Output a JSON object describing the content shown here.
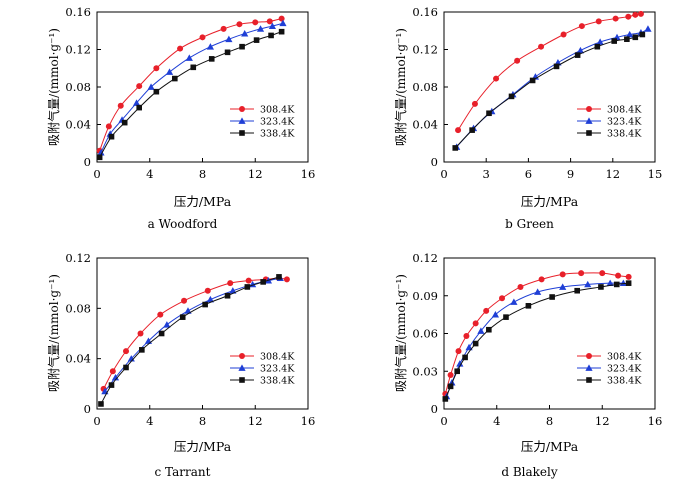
{
  "figure": {
    "background": "#ffffff"
  },
  "series_styles": [
    {
      "name": "308.4K",
      "color": "#e8202a",
      "marker": "circle"
    },
    {
      "name": "323.4K",
      "color": "#1f3fd6",
      "marker": "triangle"
    },
    {
      "name": "338.4K",
      "color": "#111111",
      "marker": "square"
    }
  ],
  "chart_data": [
    {
      "type": "scatter",
      "title": "a  Woodford",
      "xlabel": "压力/MPa",
      "ylabel": "吸附气量/(mmol·g⁻¹)",
      "xlim": [
        0,
        16
      ],
      "ylim": [
        0,
        0.16
      ],
      "xticks": [
        "0",
        "4",
        "8",
        "12",
        "16"
      ],
      "yticks": [
        "0",
        "0.04",
        "0.08",
        "0.12",
        "0.16"
      ],
      "legend": [
        "308.4K",
        "323.4K",
        "338.4K"
      ],
      "legend_position": "lower-right",
      "series": [
        {
          "name": "308.4K",
          "x": [
            0.2,
            0.9,
            1.8,
            3.2,
            4.5,
            6.3,
            8.0,
            9.6,
            10.8,
            12.0,
            13.1,
            14.0
          ],
          "y": [
            0.012,
            0.038,
            0.06,
            0.081,
            0.1,
            0.121,
            0.133,
            0.142,
            0.147,
            0.149,
            0.15,
            0.153
          ]
        },
        {
          "name": "323.4K",
          "x": [
            0.3,
            1.0,
            1.9,
            3.0,
            4.1,
            5.5,
            7.0,
            8.6,
            10.0,
            11.2,
            12.4,
            13.3,
            14.1
          ],
          "y": [
            0.01,
            0.03,
            0.045,
            0.063,
            0.08,
            0.096,
            0.111,
            0.123,
            0.131,
            0.137,
            0.142,
            0.145,
            0.148
          ]
        },
        {
          "name": "338.4K",
          "x": [
            0.2,
            1.1,
            2.1,
            3.2,
            4.5,
            5.9,
            7.3,
            8.7,
            9.9,
            11.0,
            12.1,
            13.2,
            14.0
          ],
          "y": [
            0.005,
            0.027,
            0.042,
            0.058,
            0.075,
            0.089,
            0.101,
            0.11,
            0.117,
            0.123,
            0.13,
            0.135,
            0.139
          ]
        }
      ]
    },
    {
      "type": "scatter",
      "title": "b  Green",
      "xlabel": "压力/MPa",
      "ylabel": "吸附气量/(mmol·g⁻¹)",
      "xlim": [
        0,
        15
      ],
      "ylim": [
        0,
        0.16
      ],
      "xticks": [
        "0",
        "3",
        "6",
        "9",
        "12",
        "15"
      ],
      "yticks": [
        "0",
        "0.04",
        "0.08",
        "0.12",
        "0.16"
      ],
      "legend": [
        "308.4K",
        "323.4K",
        "338.4K"
      ],
      "legend_position": "lower-right",
      "series": [
        {
          "name": "308.4K",
          "x": [
            1.0,
            2.2,
            3.7,
            5.2,
            6.9,
            8.5,
            9.8,
            11.0,
            12.2,
            13.1,
            13.6,
            14.0
          ],
          "y": [
            0.034,
            0.062,
            0.089,
            0.108,
            0.123,
            0.136,
            0.145,
            0.15,
            0.153,
            0.155,
            0.157,
            0.158
          ]
        },
        {
          "name": "323.4K",
          "x": [
            0.9,
            2.1,
            3.4,
            4.9,
            6.5,
            8.1,
            9.7,
            11.1,
            12.3,
            13.2,
            14.0,
            14.5
          ],
          "y": [
            0.016,
            0.036,
            0.054,
            0.072,
            0.091,
            0.106,
            0.119,
            0.128,
            0.133,
            0.136,
            0.138,
            0.142
          ]
        },
        {
          "name": "338.4K",
          "x": [
            0.8,
            2.0,
            3.2,
            4.8,
            6.3,
            8.0,
            9.5,
            10.9,
            12.1,
            13.0,
            13.6,
            14.1
          ],
          "y": [
            0.015,
            0.034,
            0.052,
            0.07,
            0.087,
            0.102,
            0.114,
            0.123,
            0.129,
            0.131,
            0.133,
            0.136
          ]
        }
      ]
    },
    {
      "type": "scatter",
      "title": "c  Tarrant",
      "xlabel": "压力/MPa",
      "ylabel": "吸附气量/(mmol·g⁻¹)",
      "xlim": [
        0,
        16
      ],
      "ylim": [
        0,
        0.12
      ],
      "xticks": [
        "0",
        "4",
        "8",
        "12",
        "16"
      ],
      "yticks": [
        "0",
        "0.04",
        "0.08",
        "0.12"
      ],
      "legend": [
        "308.4K",
        "323.4K",
        "338.4K"
      ],
      "legend_position": "lower-right",
      "series": [
        {
          "name": "308.4K",
          "x": [
            0.5,
            1.2,
            2.2,
            3.3,
            4.8,
            6.6,
            8.4,
            10.1,
            11.5,
            12.8,
            13.8,
            14.4
          ],
          "y": [
            0.016,
            0.03,
            0.046,
            0.06,
            0.075,
            0.086,
            0.094,
            0.1,
            0.102,
            0.103,
            0.104,
            0.103
          ]
        },
        {
          "name": "323.4K",
          "x": [
            0.6,
            1.4,
            2.6,
            3.9,
            5.3,
            6.9,
            8.6,
            10.3,
            11.8,
            13.0,
            13.9
          ],
          "y": [
            0.014,
            0.025,
            0.04,
            0.054,
            0.067,
            0.078,
            0.087,
            0.094,
            0.099,
            0.102,
            0.104
          ]
        },
        {
          "name": "338.4K",
          "x": [
            0.3,
            1.1,
            2.2,
            3.4,
            4.9,
            6.5,
            8.2,
            9.9,
            11.4,
            12.6,
            13.8
          ],
          "y": [
            0.004,
            0.019,
            0.033,
            0.047,
            0.06,
            0.073,
            0.083,
            0.09,
            0.097,
            0.101,
            0.105
          ]
        }
      ]
    },
    {
      "type": "scatter",
      "title": "d  Blakely",
      "xlabel": "压力/MPa",
      "ylabel": "吸附气量/(mmol·g⁻¹)",
      "xlim": [
        0,
        16
      ],
      "ylim": [
        0,
        0.12
      ],
      "xticks": [
        "0",
        "4",
        "8",
        "12",
        "16"
      ],
      "yticks": [
        "0",
        "0.03",
        "0.06",
        "0.09",
        "0.12"
      ],
      "legend": [
        "308.4K",
        "323.4K",
        "338.4K"
      ],
      "legend_position": "lower-right",
      "series": [
        {
          "name": "308.4K",
          "x": [
            0.1,
            0.5,
            1.1,
            1.7,
            2.4,
            3.2,
            4.4,
            5.8,
            7.4,
            9.0,
            10.4,
            12.0,
            13.2,
            14.0
          ],
          "y": [
            0.012,
            0.027,
            0.046,
            0.058,
            0.068,
            0.078,
            0.088,
            0.097,
            0.103,
            0.107,
            0.108,
            0.108,
            0.106,
            0.105
          ]
        },
        {
          "name": "323.4K",
          "x": [
            0.2,
            0.6,
            1.2,
            1.9,
            2.8,
            3.9,
            5.3,
            7.1,
            9.0,
            10.9,
            12.6,
            13.6
          ],
          "y": [
            0.01,
            0.021,
            0.036,
            0.049,
            0.062,
            0.075,
            0.085,
            0.093,
            0.097,
            0.099,
            0.1,
            0.1
          ]
        },
        {
          "name": "338.4K",
          "x": [
            0.1,
            0.5,
            1.0,
            1.6,
            2.4,
            3.4,
            4.7,
            6.4,
            8.2,
            10.1,
            11.9,
            13.1,
            14.0
          ],
          "y": [
            0.008,
            0.018,
            0.03,
            0.041,
            0.052,
            0.063,
            0.073,
            0.082,
            0.089,
            0.094,
            0.097,
            0.099,
            0.1
          ]
        }
      ]
    }
  ]
}
